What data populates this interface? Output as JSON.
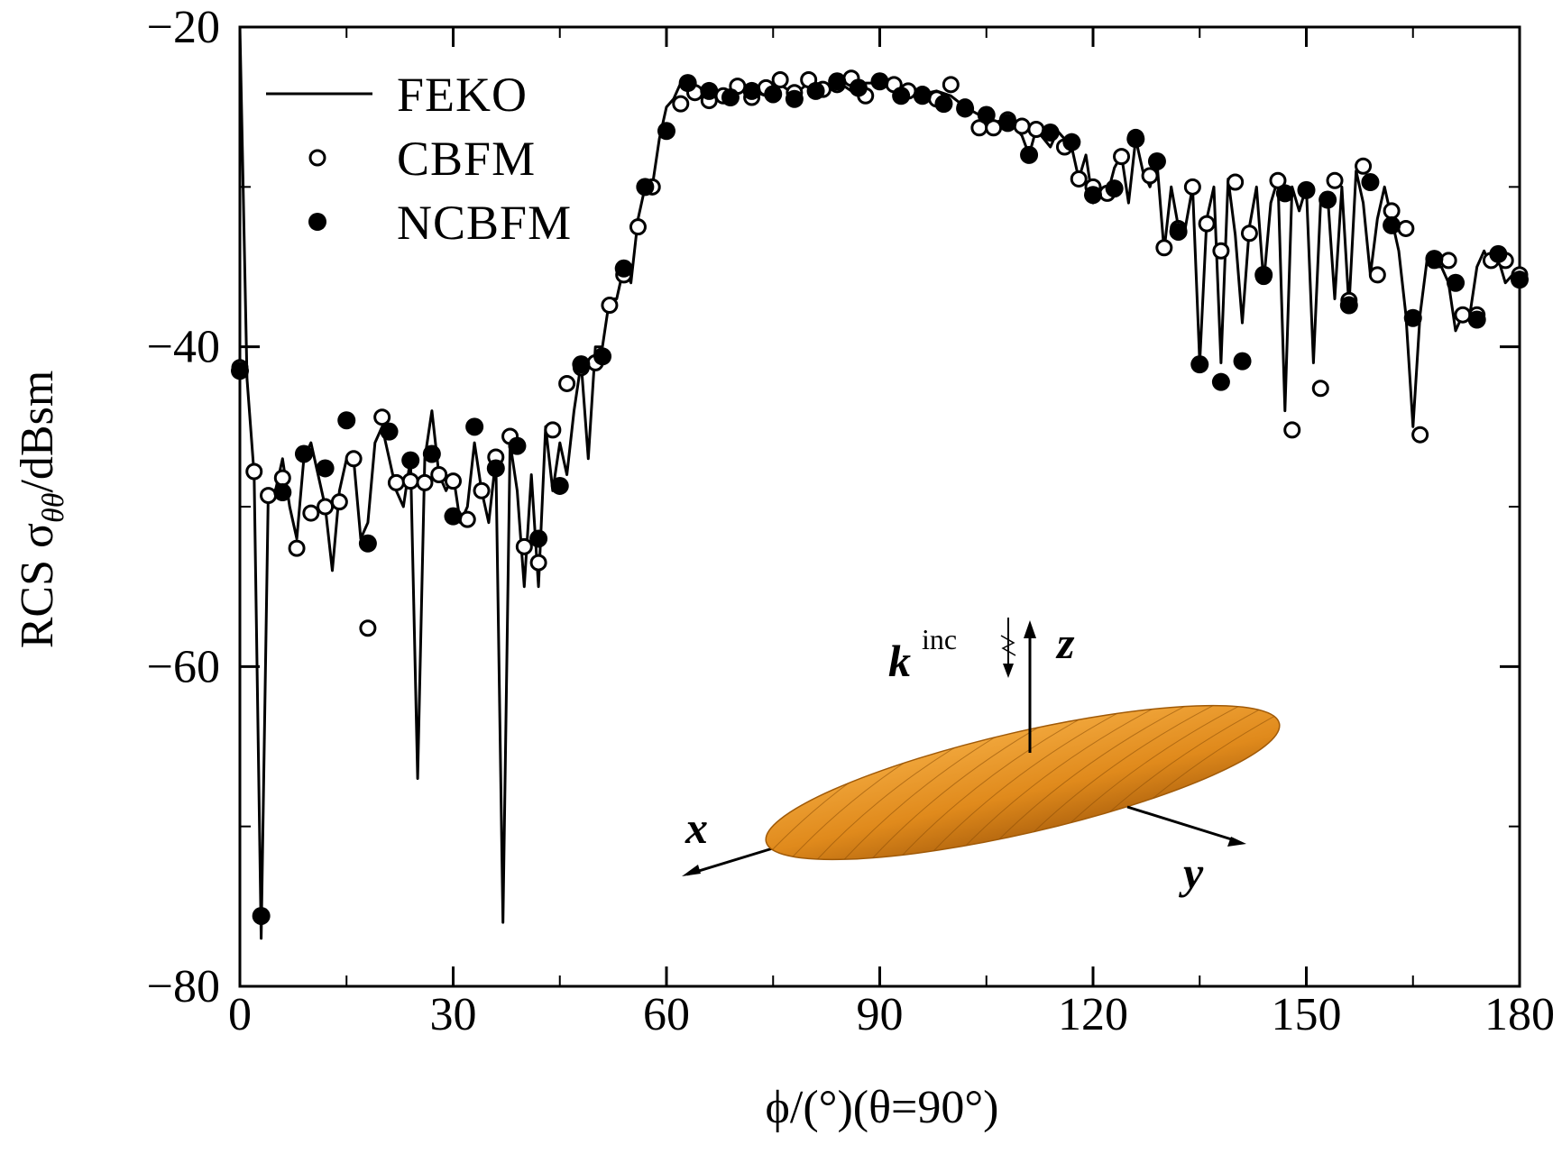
{
  "chart_data": {
    "type": "line",
    "xlabel": "ϕ/(°)(θ=90°)",
    "ylabel": [
      "RCS σ",
      "θθ",
      "/dBsm"
    ],
    "xlim": [
      0,
      180
    ],
    "ylim": [
      -80,
      -20
    ],
    "xticks": [
      0,
      30,
      60,
      90,
      120,
      150,
      180
    ],
    "xminorticks": [
      15,
      45,
      75,
      105,
      135,
      165
    ],
    "yticks": [
      {
        "value": -20,
        "label": "−20"
      },
      {
        "value": -40,
        "label": "−40"
      },
      {
        "value": -60,
        "label": "−60"
      },
      {
        "value": -80,
        "label": "−80"
      }
    ],
    "yminorticks": [
      -30,
      -50,
      -70
    ],
    "legend": "upper left",
    "series": [
      {
        "name": "FEKO",
        "style": "line",
        "color": "#000000",
        "x": [
          0,
          1,
          2,
          3,
          4,
          5,
          6,
          7,
          8,
          9,
          10,
          11,
          12,
          13,
          14,
          15,
          16,
          17,
          18,
          19,
          20,
          21,
          22,
          23,
          24,
          25,
          26,
          27,
          28,
          29,
          30,
          31,
          32,
          33,
          34,
          35,
          36,
          37,
          38,
          39,
          40,
          41,
          42,
          43,
          44,
          45,
          46,
          47,
          48,
          49,
          50,
          51,
          52,
          53,
          54,
          55,
          56,
          57,
          58,
          59,
          60,
          61,
          62,
          64,
          66,
          68,
          70,
          72,
          74,
          76,
          78,
          80,
          82,
          84,
          86,
          88,
          90,
          92,
          94,
          96,
          98,
          100,
          102,
          104,
          106,
          108,
          110,
          111,
          112,
          114,
          115,
          117,
          118,
          119,
          120,
          121,
          122,
          123,
          124,
          125,
          126,
          127,
          128,
          129,
          130,
          131,
          132,
          133,
          134,
          135,
          136,
          137,
          138,
          139,
          140,
          141,
          142,
          143,
          144,
          145,
          146,
          147,
          148,
          149,
          150,
          151,
          152,
          153,
          154,
          155,
          156,
          157,
          158,
          159,
          160,
          161,
          162,
          163,
          164,
          165,
          166,
          167,
          168,
          169,
          170,
          171,
          172,
          173,
          174,
          175,
          176,
          177,
          178,
          179,
          180
        ],
        "values": [
          -20,
          -42,
          -48,
          -77,
          -49,
          -49,
          -47,
          -50,
          -52,
          -47,
          -46,
          -48,
          -50,
          -54,
          -49,
          -47,
          -47,
          -52,
          -51,
          -46,
          -45,
          -47,
          -49,
          -50,
          -47,
          -67,
          -47,
          -44,
          -48,
          -49,
          -48,
          -51,
          -50,
          -46,
          -49,
          -51,
          -47,
          -76,
          -46,
          -49,
          -55,
          -48,
          -55,
          -45,
          -49,
          -46,
          -48,
          -44,
          -41,
          -47,
          -40,
          -40,
          -37,
          -37,
          -35,
          -36,
          -32,
          -30,
          -30,
          -27,
          -25,
          -24.5,
          -23.5,
          -24,
          -24.5,
          -24.2,
          -23.8,
          -24,
          -24.3,
          -23.6,
          -24.2,
          -23.5,
          -24,
          -23.4,
          -24,
          -23.5,
          -23.5,
          -24,
          -23.6,
          -24.2,
          -24,
          -24.3,
          -25,
          -25.5,
          -26,
          -25.7,
          -26.8,
          -28,
          -26.4,
          -27.5,
          -26.5,
          -27.5,
          -29.5,
          -28,
          -31,
          -30,
          -30.5,
          -28.8,
          -28,
          -31,
          -27,
          -29,
          -30,
          -28.5,
          -34,
          -30,
          -32.5,
          -32.5,
          -30,
          -41,
          -32,
          -30,
          -41,
          -29.5,
          -33,
          -38.5,
          -32.5,
          -30,
          -36,
          -31,
          -29.5,
          -44,
          -30,
          -31.5,
          -30,
          -41,
          -31,
          -30.5,
          -37,
          -30,
          -37.5,
          -29,
          -31,
          -35.5,
          -32,
          -30,
          -32,
          -34,
          -38,
          -45,
          -38,
          -34.5,
          -35,
          -35,
          -36,
          -39,
          -38,
          -38,
          -35,
          -34,
          -35,
          -34.5,
          -36,
          -35.5,
          -36
        ]
      },
      {
        "name": "CBFM",
        "style": "open",
        "color": "#000000",
        "x": [
          0,
          2,
          4,
          6,
          8,
          10,
          12,
          14,
          16,
          18,
          20,
          22,
          24,
          26,
          28,
          30,
          32,
          34,
          36,
          38,
          40,
          42,
          44,
          46,
          48,
          50,
          52,
          54,
          56,
          58,
          60,
          62,
          64,
          66,
          68,
          70,
          72,
          74,
          76,
          78,
          80,
          82,
          84,
          86,
          88,
          90,
          92,
          94,
          96,
          98,
          100,
          102,
          104,
          106,
          108,
          110,
          112,
          114,
          116,
          118,
          120,
          122,
          124,
          126,
          128,
          130,
          132,
          134,
          136,
          138,
          140,
          142,
          144,
          146,
          148,
          150,
          152,
          154,
          156,
          158,
          160,
          162,
          164,
          166,
          168,
          170,
          172,
          174,
          176,
          178,
          180
        ],
        "values": [
          -41.3,
          -47.8,
          -49.3,
          -48.2,
          -52.6,
          -50.4,
          -50,
          -49.7,
          -47,
          -57.6,
          -44.4,
          -48.5,
          -48.4,
          -48.5,
          -48,
          -48.4,
          -50.8,
          -49,
          -46.9,
          -45.6,
          -52.5,
          -53.5,
          -45.2,
          -42.3,
          -41.3,
          -41,
          -37.4,
          -35.5,
          -32.5,
          -30,
          -26.5,
          -24.8,
          -24.1,
          -24.6,
          -24.3,
          -23.7,
          -24.4,
          -23.8,
          -23.3,
          -24.1,
          -23.3,
          -23.9,
          -23.6,
          -23.2,
          -24.3,
          -23.4,
          -23.6,
          -24,
          -24.2,
          -24.5,
          -23.6,
          -25,
          -26.3,
          -26.3,
          -25.8,
          -26.2,
          -26.4,
          -26.6,
          -27.5,
          -29.5,
          -30,
          -30.4,
          -28.1,
          -26.9,
          -29.3,
          -33.8,
          -32.6,
          -30,
          -32.3,
          -34,
          -29.7,
          -32.9,
          -35.6,
          -29.6,
          -45.2,
          -30.2,
          -42.6,
          -29.6,
          -37.1,
          -28.7,
          -35.5,
          -31.5,
          -32.6,
          -45.5,
          -34.6,
          -34.6,
          -38,
          -38,
          -34.6,
          -34.6,
          -35.5
        ]
      },
      {
        "name": "NCBFM",
        "style": "filled",
        "color": "#000000",
        "x": [
          0,
          3,
          6,
          9,
          12,
          15,
          18,
          21,
          24,
          27,
          30,
          33,
          36,
          39,
          42,
          45,
          48,
          51,
          54,
          57,
          60,
          63,
          66,
          69,
          72,
          75,
          78,
          81,
          84,
          87,
          90,
          93,
          96,
          99,
          102,
          105,
          108,
          111,
          114,
          117,
          120,
          123,
          126,
          129,
          132,
          135,
          138,
          141,
          144,
          147,
          150,
          153,
          156,
          159,
          162,
          165,
          168,
          171,
          174,
          177,
          180
        ],
        "values": [
          -41.5,
          -75.6,
          -49.1,
          -46.7,
          -47.6,
          -44.6,
          -52.3,
          -45.3,
          -47.1,
          -46.7,
          -50.6,
          -45,
          -47.6,
          -46.2,
          -52,
          -48.7,
          -41.1,
          -40.6,
          -35.1,
          -30,
          -26.5,
          -23.5,
          -24,
          -24.4,
          -24,
          -24.2,
          -24.5,
          -24,
          -23.4,
          -23.8,
          -23.4,
          -24.3,
          -24.3,
          -24.8,
          -25.1,
          -25.5,
          -26,
          -28,
          -26.6,
          -27.2,
          -30.5,
          -30.1,
          -27,
          -28.4,
          -32.8,
          -41.1,
          -42.2,
          -40.9,
          -35.5,
          -30.4,
          -30.2,
          -30.8,
          -37.4,
          -29.7,
          -32.4,
          -38.2,
          -34.5,
          -36,
          -38.3,
          -34.2,
          -35.8
        ]
      }
    ],
    "inset_labels": {
      "x": "x",
      "y": "y",
      "z": "z",
      "k": "k",
      "k_sup": "inc"
    }
  }
}
